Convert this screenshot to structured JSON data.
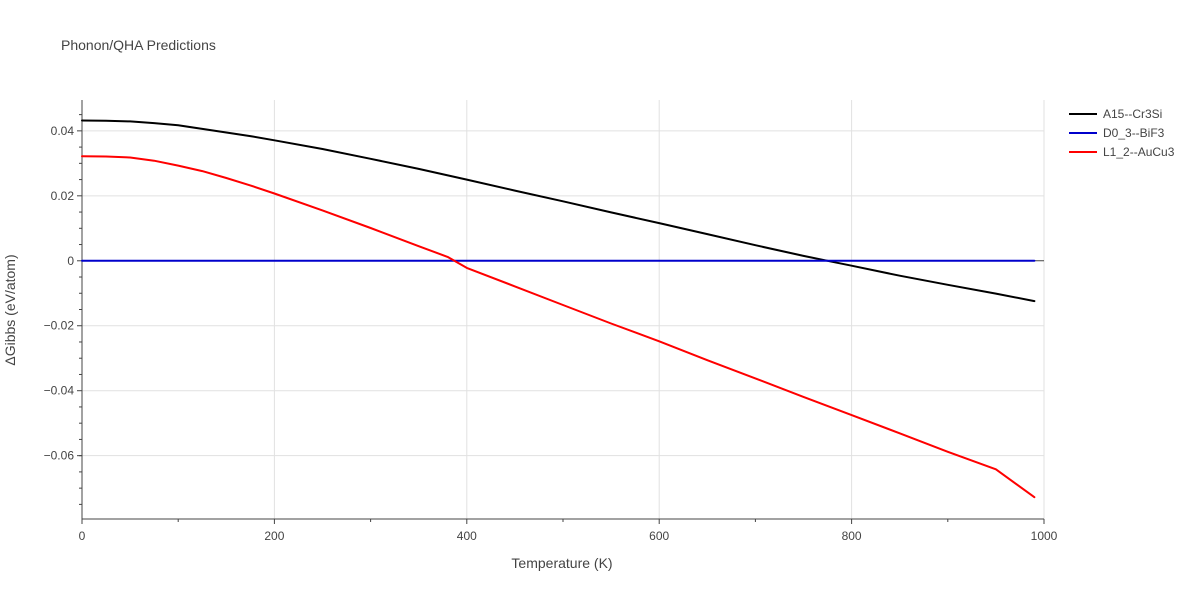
{
  "chart_data": {
    "type": "line",
    "title": "Phonon/QHA Predictions",
    "xlabel": "Temperature (K)",
    "ylabel": "ΔGibbs (eV/atom)",
    "xlim": [
      0,
      1000
    ],
    "ylim": [
      -0.0795,
      0.0495
    ],
    "xticks": [
      0,
      200,
      400,
      600,
      800,
      1000
    ],
    "xtick_labels": [
      "0",
      "200",
      "400",
      "600",
      "800",
      "1000"
    ],
    "yticks": [
      0.04,
      0.02,
      0,
      -0.02,
      -0.04,
      -0.06
    ],
    "ytick_labels": [
      "0.04",
      "0.02",
      "0",
      "−0.02",
      "−0.04",
      "−0.06"
    ],
    "grid": true,
    "legend_position": "top-right",
    "series": [
      {
        "name": "A15--Cr3Si",
        "color": "#000000",
        "x": [
          0,
          25,
          50,
          75,
          100,
          125,
          150,
          175,
          200,
          250,
          300,
          350,
          400,
          450,
          500,
          550,
          600,
          650,
          700,
          750,
          780,
          800,
          850,
          900,
          950,
          990
        ],
        "y": [
          0.0432,
          0.0431,
          0.0429,
          0.0424,
          0.0417,
          0.0406,
          0.0395,
          0.0384,
          0.0371,
          0.0344,
          0.0314,
          0.0283,
          0.025,
          0.0216,
          0.0183,
          0.0149,
          0.0116,
          0.0082,
          0.0048,
          0.0015,
          -0.0003,
          -0.0015,
          -0.0046,
          -0.0074,
          -0.0101,
          -0.0124
        ]
      },
      {
        "name": "D0_3--BiF3",
        "color": "#0000cc",
        "x": [
          0,
          990
        ],
        "y": [
          0,
          0
        ]
      },
      {
        "name": "L1_2--AuCu3",
        "color": "#ff0000",
        "x": [
          0,
          25,
          50,
          75,
          100,
          125,
          150,
          175,
          200,
          250,
          300,
          350,
          380,
          400,
          450,
          500,
          550,
          600,
          650,
          700,
          750,
          800,
          850,
          900,
          950,
          990
        ],
        "y": [
          0.0322,
          0.0321,
          0.0318,
          0.0308,
          0.0293,
          0.0276,
          0.0255,
          0.0232,
          0.0207,
          0.0155,
          0.0101,
          0.0045,
          0.0012,
          -0.0022,
          -0.0079,
          -0.0136,
          -0.0193,
          -0.0248,
          -0.0306,
          -0.0362,
          -0.0419,
          -0.0475,
          -0.0531,
          -0.0588,
          -0.0642,
          -0.0728
        ]
      }
    ]
  }
}
